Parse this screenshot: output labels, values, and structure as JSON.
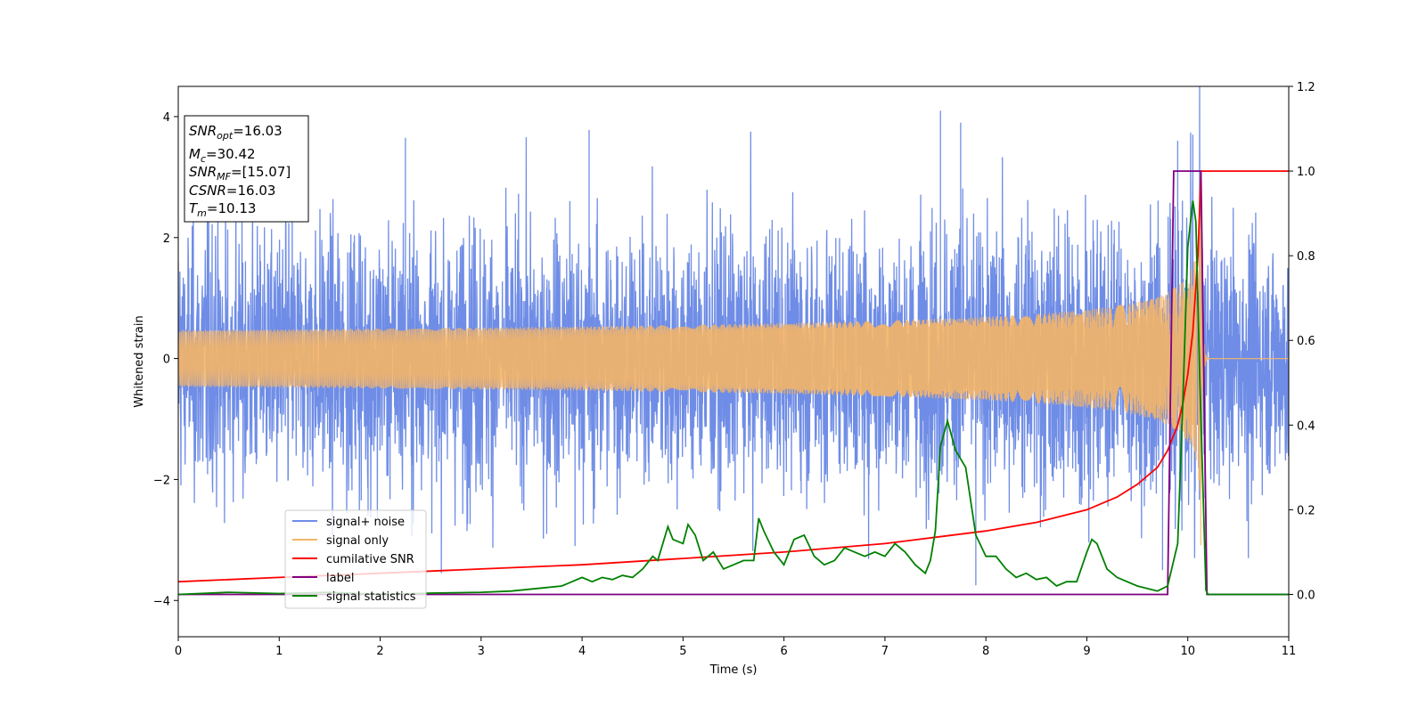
{
  "chart_data": {
    "type": "line",
    "xlabel": "Time (s)",
    "ylabel": "Whitened strain",
    "xlim": [
      0,
      11
    ],
    "ylim_left": [
      -4.6,
      4.5
    ],
    "ylim_right": [
      -0.1,
      1.2
    ],
    "x_ticks": [
      0,
      1,
      2,
      3,
      4,
      5,
      6,
      7,
      8,
      9,
      10,
      11
    ],
    "y_ticks_left": [
      -4,
      -2,
      0,
      2,
      4
    ],
    "y_ticks_right": [
      0.0,
      0.2,
      0.4,
      0.6,
      0.8,
      1.0,
      1.2
    ],
    "legend_position": "lower-left",
    "info_box": {
      "snr_opt": "16.03",
      "mc": "30.42",
      "snr_mf": "[15.07]",
      "csnr": "16.03",
      "tm": "10.13"
    },
    "series": [
      {
        "name": "signal+ noise",
        "axis": "left",
        "color": "#6f8de6",
        "kind": "noise",
        "noise_std": 1.0,
        "peaks": [
          [
            2.25,
            3.65
          ],
          [
            4.07,
            3.78
          ],
          [
            7.55,
            4.1
          ],
          [
            7.75,
            3.9
          ],
          [
            9.9,
            3.6
          ],
          [
            10.05,
            3.7
          ],
          [
            1.88,
            -2.6
          ],
          [
            3.65,
            -2.9
          ],
          [
            3.93,
            -3.1
          ],
          [
            7.9,
            -3.75
          ],
          [
            9.75,
            -3.5
          ],
          [
            10.6,
            -3.3
          ]
        ]
      },
      {
        "name": "signal only",
        "axis": "left",
        "color": "#f5b567",
        "kind": "chirp",
        "merger_time": 10.13,
        "peak_amplitude": 3.5
      },
      {
        "name": "cumilative SNR",
        "axis": "right",
        "color": "#ff0000",
        "x": [
          0,
          1,
          2,
          3,
          4,
          5,
          6,
          7,
          7.5,
          8,
          8.5,
          9,
          9.3,
          9.5,
          9.7,
          9.8,
          9.9,
          9.95,
          10.0,
          10.05,
          10.1,
          10.13,
          11
        ],
        "y": [
          0.03,
          0.04,
          0.05,
          0.06,
          0.07,
          0.085,
          0.1,
          0.12,
          0.135,
          0.15,
          0.17,
          0.2,
          0.23,
          0.26,
          0.3,
          0.34,
          0.4,
          0.45,
          0.52,
          0.62,
          0.8,
          1.0,
          1.0
        ]
      },
      {
        "name": "label",
        "axis": "right",
        "color": "#800080",
        "x": [
          0,
          9.8,
          9.86,
          10.13,
          10.19,
          11
        ],
        "y": [
          0,
          0,
          1,
          1,
          0,
          0
        ]
      },
      {
        "name": "signal statistics",
        "axis": "right",
        "color": "#008000",
        "x": [
          0,
          0.5,
          1,
          1.5,
          2,
          2.5,
          3,
          3.3,
          3.6,
          3.8,
          4.0,
          4.1,
          4.2,
          4.3,
          4.4,
          4.5,
          4.6,
          4.7,
          4.75,
          4.85,
          4.9,
          5.0,
          5.05,
          5.12,
          5.2,
          5.3,
          5.4,
          5.5,
          5.6,
          5.7,
          5.75,
          5.8,
          5.9,
          6.0,
          6.1,
          6.2,
          6.3,
          6.4,
          6.5,
          6.6,
          6.7,
          6.8,
          6.9,
          7.0,
          7.1,
          7.2,
          7.3,
          7.4,
          7.45,
          7.5,
          7.55,
          7.62,
          7.7,
          7.8,
          7.9,
          8.0,
          8.1,
          8.2,
          8.3,
          8.4,
          8.5,
          8.6,
          8.7,
          8.8,
          8.9,
          9.0,
          9.05,
          9.1,
          9.2,
          9.3,
          9.5,
          9.7,
          9.8,
          9.9,
          9.95,
          10.0,
          10.05,
          10.08,
          10.12,
          10.18,
          10.2,
          11
        ],
        "y": [
          0.0,
          0.005,
          0.002,
          0.005,
          0.0,
          0.003,
          0.005,
          0.008,
          0.015,
          0.02,
          0.04,
          0.03,
          0.04,
          0.035,
          0.045,
          0.04,
          0.06,
          0.09,
          0.08,
          0.16,
          0.13,
          0.12,
          0.165,
          0.14,
          0.08,
          0.1,
          0.06,
          0.07,
          0.08,
          0.08,
          0.18,
          0.15,
          0.1,
          0.07,
          0.13,
          0.14,
          0.09,
          0.07,
          0.08,
          0.11,
          0.1,
          0.09,
          0.1,
          0.09,
          0.12,
          0.1,
          0.07,
          0.05,
          0.08,
          0.15,
          0.35,
          0.41,
          0.34,
          0.3,
          0.14,
          0.09,
          0.09,
          0.06,
          0.04,
          0.05,
          0.035,
          0.04,
          0.02,
          0.03,
          0.03,
          0.1,
          0.13,
          0.12,
          0.06,
          0.04,
          0.02,
          0.008,
          0.02,
          0.12,
          0.45,
          0.82,
          0.93,
          0.88,
          0.5,
          0.01,
          0.0,
          0.0
        ]
      }
    ]
  }
}
